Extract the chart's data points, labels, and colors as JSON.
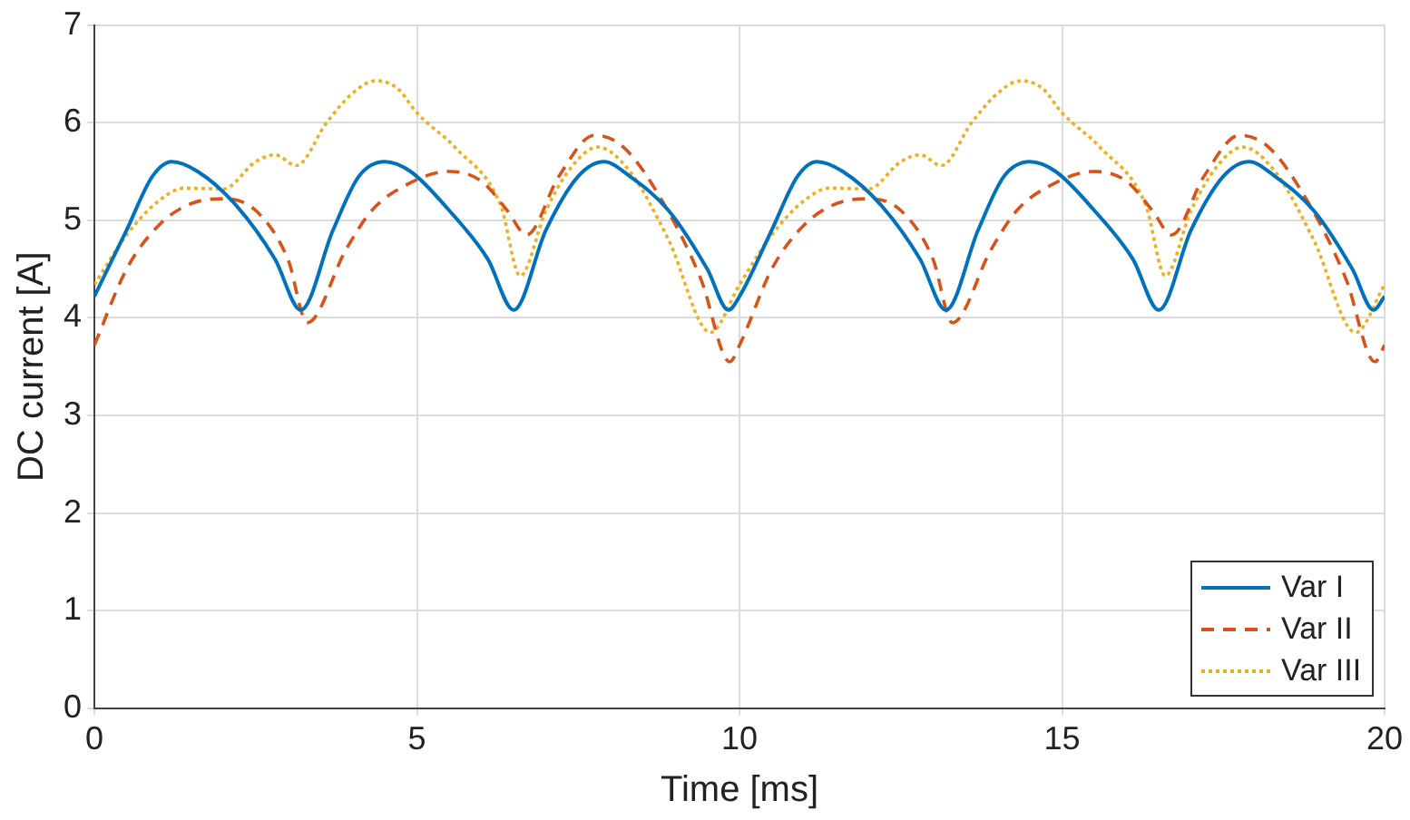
{
  "chart_data": {
    "type": "line",
    "xlabel": "Time [ms]",
    "ylabel": "DC current [A]",
    "xlim": [
      0,
      20
    ],
    "xticks": [
      0,
      5,
      10,
      15,
      20
    ],
    "ylim": [
      0,
      7
    ],
    "yticks": [
      0,
      1,
      2,
      3,
      4,
      5,
      6,
      7
    ],
    "grid": true,
    "legend": "bottom right",
    "marker": "none",
    "series": [
      {
        "name": "Var I",
        "color": "#0072bd",
        "line_style": "solid",
        "x": [
          0,
          0.5,
          0.9,
          1.2,
          1.6,
          2.2,
          2.8,
          3.2,
          3.7,
          4.1,
          4.5,
          4.9,
          5.5,
          6.1,
          6.5,
          7.0,
          7.5,
          7.9,
          8.3,
          8.9,
          9.5,
          9.83,
          10,
          10.5,
          10.9,
          11.2,
          11.6,
          12.2,
          12.8,
          13.2,
          13.7,
          14.1,
          14.5,
          14.9,
          15.5,
          16.1,
          16.5,
          17.0,
          17.5,
          17.9,
          18.3,
          18.9,
          19.5,
          19.83,
          20
        ],
        "values": [
          4.22,
          4.9,
          5.45,
          5.6,
          5.5,
          5.15,
          4.6,
          4.08,
          4.9,
          5.45,
          5.6,
          5.5,
          5.1,
          4.6,
          4.08,
          4.9,
          5.45,
          5.6,
          5.45,
          5.1,
          4.5,
          4.08,
          4.22,
          4.9,
          5.45,
          5.6,
          5.5,
          5.15,
          4.6,
          4.08,
          4.9,
          5.45,
          5.6,
          5.5,
          5.1,
          4.6,
          4.08,
          4.9,
          5.45,
          5.6,
          5.45,
          5.1,
          4.5,
          4.08,
          4.22
        ]
      },
      {
        "name": "Var II",
        "color": "#d95319",
        "line_style": "dashed",
        "x": [
          0,
          0.5,
          1.0,
          1.5,
          2.0,
          2.5,
          3.0,
          3.3,
          3.9,
          4.3,
          4.8,
          5.5,
          6.0,
          6.4,
          6.7,
          7.2,
          7.75,
          8.2,
          8.8,
          9.4,
          9.85,
          10,
          10.5,
          11.0,
          11.5,
          12.0,
          12.5,
          13.0,
          13.3,
          13.9,
          14.3,
          14.8,
          15.5,
          16.0,
          16.4,
          16.7,
          17.2,
          17.75,
          18.2,
          18.8,
          19.4,
          19.85,
          20
        ],
        "values": [
          3.72,
          4.5,
          4.95,
          5.17,
          5.22,
          5.1,
          4.6,
          3.95,
          4.7,
          5.1,
          5.35,
          5.5,
          5.4,
          5.1,
          4.85,
          5.45,
          5.87,
          5.75,
          5.2,
          4.4,
          3.55,
          3.72,
          4.5,
          4.95,
          5.17,
          5.22,
          5.1,
          4.6,
          3.95,
          4.7,
          5.1,
          5.35,
          5.5,
          5.4,
          5.1,
          4.85,
          5.45,
          5.87,
          5.75,
          5.2,
          4.4,
          3.55,
          3.72
        ]
      },
      {
        "name": "Var III",
        "color": "#edb120",
        "line_style": "dotted",
        "x": [
          0,
          0.5,
          1.0,
          1.4,
          2.0,
          2.5,
          2.8,
          3.13,
          3.6,
          4.0,
          4.36,
          4.7,
          5.0,
          5.6,
          6.3,
          6.6,
          7.0,
          7.4,
          7.8,
          8.3,
          8.9,
          9.55,
          10,
          10.5,
          11.0,
          11.4,
          12.0,
          12.5,
          12.8,
          13.13,
          13.6,
          14.0,
          14.36,
          14.7,
          15.0,
          15.6,
          16.3,
          16.6,
          17.0,
          17.4,
          17.8,
          18.3,
          18.9,
          19.55,
          20
        ],
        "values": [
          4.34,
          4.85,
          5.2,
          5.33,
          5.32,
          5.6,
          5.67,
          5.56,
          6.0,
          6.3,
          6.43,
          6.35,
          6.1,
          5.74,
          5.15,
          4.43,
          5.1,
          5.55,
          5.75,
          5.5,
          4.8,
          3.85,
          4.34,
          4.85,
          5.2,
          5.33,
          5.32,
          5.6,
          5.67,
          5.56,
          6.0,
          6.3,
          6.43,
          6.35,
          6.1,
          5.74,
          5.15,
          4.43,
          5.1,
          5.55,
          5.75,
          5.5,
          4.8,
          3.85,
          4.34
        ]
      }
    ]
  }
}
